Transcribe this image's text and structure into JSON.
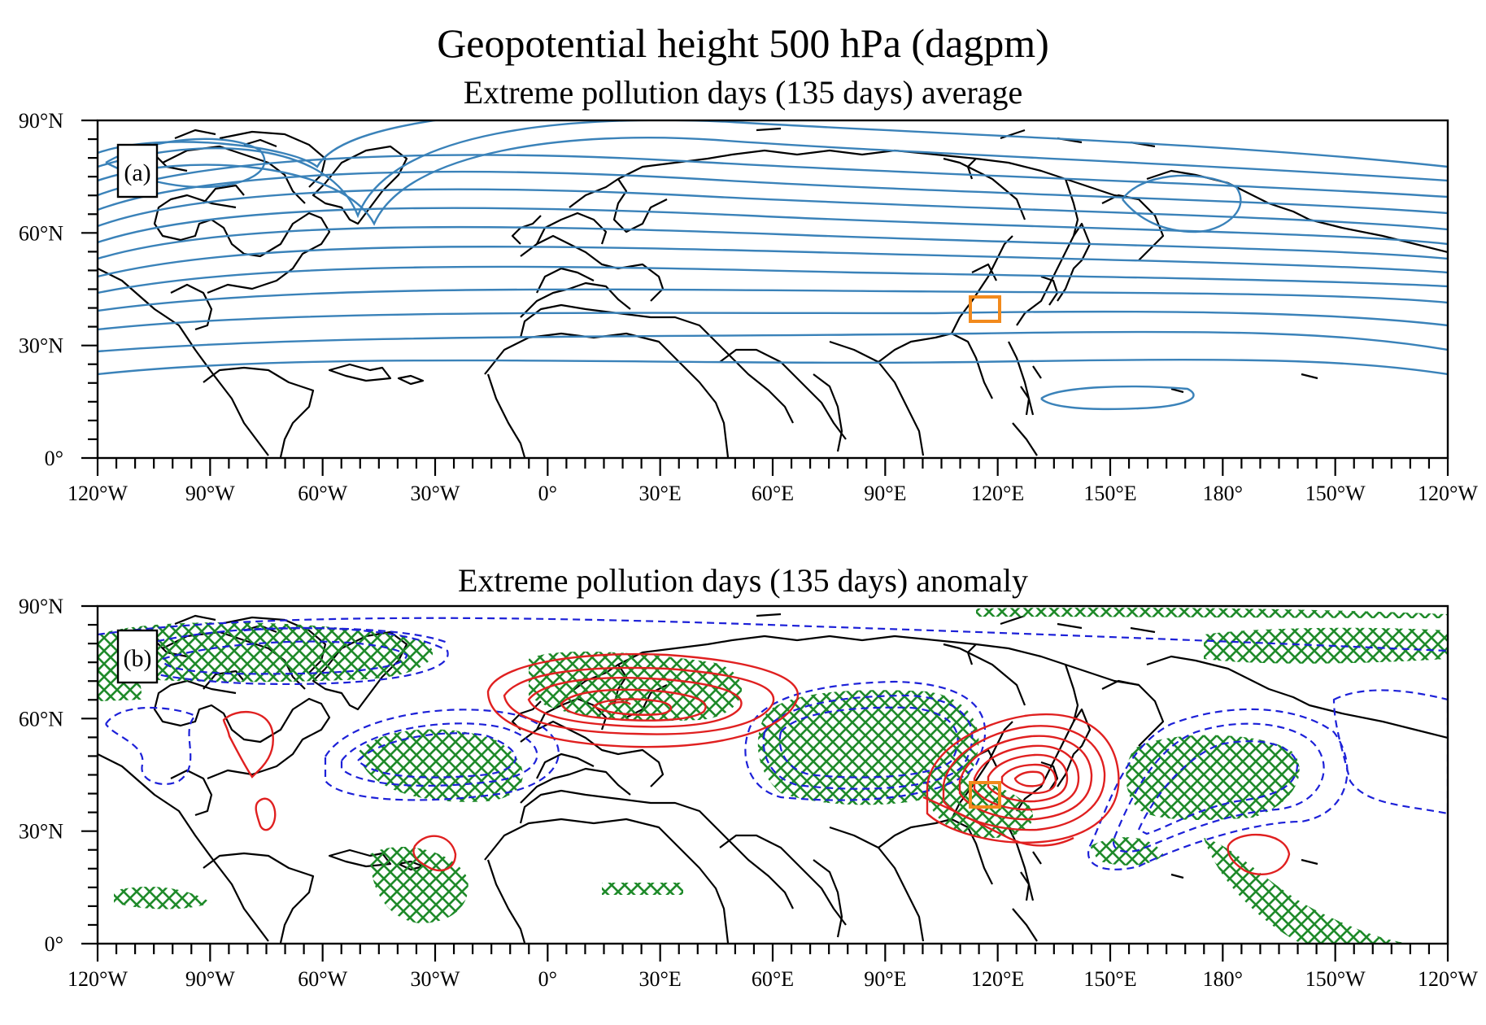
{
  "title": "Geopotential height 500 hPa (dagpm)",
  "colors": {
    "average_contour": "#3a82b9",
    "positive_anomaly": "#e02020",
    "negative_anomaly": "#1c20d8",
    "significance_hatch": "#1f8a2a",
    "region_box": "#f28a1c",
    "coastline": "#000000"
  },
  "panels": [
    {
      "id": "a",
      "label": "(a)",
      "subtitle": "Extreme pollution days (135 days) average"
    },
    {
      "id": "b",
      "label": "(b)",
      "subtitle": "Extreme pollution days (135 days) anomaly"
    }
  ],
  "axes": {
    "lon_range": [
      -120,
      240
    ],
    "lat_range": [
      0,
      90
    ],
    "x_tick_labels": [
      "120°W",
      "90°W",
      "60°W",
      "30°W",
      "0°",
      "30°E",
      "60°E",
      "90°E",
      "120°E",
      "150°E",
      "180°",
      "150°W",
      "120°W"
    ],
    "y_tick_labels": [
      "0°",
      "30°N",
      "60°N",
      "90°N"
    ]
  },
  "chart_data": {
    "type": "map",
    "title": "Geopotential height 500 hPa (dagpm)",
    "variable": "Geopotential height 500 hPa (dagpm)",
    "lon_range": [
      -120,
      240
    ],
    "lat_range": [
      0,
      90
    ],
    "panels": [
      {
        "label": "(a)",
        "title": "Extreme pollution days (135 days) average",
        "kind": "mean contours"
      },
      {
        "label": "(b)",
        "title": "Extreme pollution days (135 days) anomaly",
        "kind": "anomaly contours (red positive, blue dashed negative), green hatching significant"
      }
    ],
    "study_region_box": {
      "lon": [
        114,
        122
      ],
      "lat": [
        36,
        42
      ]
    }
  }
}
